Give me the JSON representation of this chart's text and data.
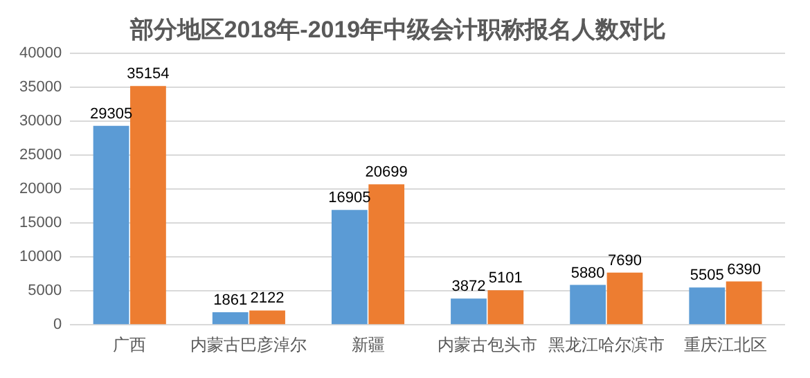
{
  "chart_data": {
    "type": "bar",
    "title": "部分地区2018年-2019年中级会计职称报名人数对比",
    "categories": [
      "广西",
      "内蒙古巴彦淖尔",
      "新疆",
      "内蒙古包头市",
      "黑龙江哈尔滨市",
      "重庆江北区"
    ],
    "series": [
      {
        "color": "#5b9bd5",
        "values": [
          29305,
          1861,
          16905,
          3872,
          5880,
          5505
        ]
      },
      {
        "color": "#ed7d31",
        "values": [
          35154,
          2122,
          20699,
          5101,
          7690,
          6390
        ]
      }
    ],
    "ylim": [
      0,
      40000
    ],
    "yticks": [
      0,
      5000,
      10000,
      15000,
      20000,
      25000,
      30000,
      35000,
      40000
    ],
    "grid": "y",
    "data_labels": true
  }
}
